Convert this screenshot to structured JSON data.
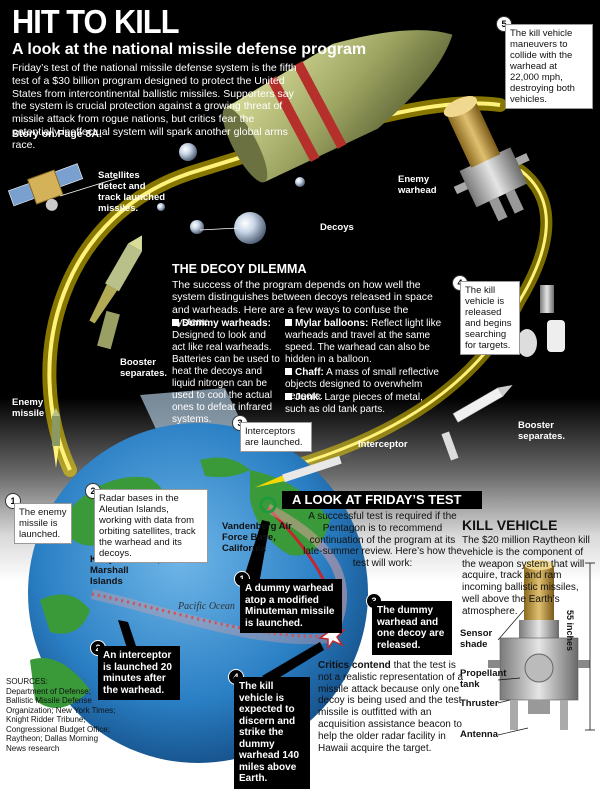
{
  "header": {
    "title": "HIT TO KILL",
    "subtitle": "A look at the national missile defense program",
    "intro": "Friday’s test of the national missile defense system is the fifth test of a $30 billion program designed to protect the United States from intercontinental ballistic missiles. Supporters say the system is crucial protection against a growing threat of missile attack from rogue nations, but critics fear the potentially ineffectual system will spark another global arms race.",
    "story_ref": "Story on Page 8A."
  },
  "labels": {
    "satellites": "Satellites detect and track launched missiles.",
    "enemy_warhead": "Enemy warhead",
    "decoys": "Decoys",
    "booster_separates_left": "Booster separates.",
    "enemy_missile": "Enemy missile",
    "interceptor": "Interceptor",
    "booster_separates_right": "Booster separates.",
    "vandenberg": "Vandenberg Air Force Base, California",
    "kwajalein": "Kwajalein Atoll, Marshall Islands",
    "pacific": "Pacific Ocean"
  },
  "callouts": {
    "step1": {
      "num": "1",
      "text": "The enemy missile is launched."
    },
    "step2": {
      "num": "2",
      "text": "Radar bases in the Aleutian Islands, working with data from orbiting satellites, track the warhead and its decoys."
    },
    "step3": {
      "num": "3",
      "text": "Interceptors are launched."
    },
    "step4": {
      "num": "4",
      "text": "The kill vehicle is released and begins searching for targets."
    },
    "step5": {
      "num": "5",
      "text": "The kill vehicle maneuvers to collide with the warhead at 22,000 mph, destroying both vehicles."
    }
  },
  "dilemma": {
    "heading": "THE DECOY DILEMMA",
    "intro": "The success of the program depends on how well the system distinguishes between decoys released in space and warheads. Here are a few ways to confuse the system:",
    "items": [
      {
        "term": "Dummy warheads:",
        "text": "Designed to look and act like real warheads. Batteries can be used to heat the decoys and liquid nitrogen can be used to cool the actual ones to defeat infrared systems."
      },
      {
        "term": "Mylar balloons:",
        "text": "Reflect light like warheads and travel at the same speed. The warhead can also be hidden in a balloon."
      },
      {
        "term": "Chaff:",
        "text": "A mass of small reflective objects designed to overwhelm sensors."
      },
      {
        "term": "Junk:",
        "text": "Large pieces of metal, such as old tank parts."
      }
    ]
  },
  "friday": {
    "banner": "A LOOK AT FRIDAY’S TEST",
    "text": "A successful test is required if the Pentagon is to recommend continuation of the program at its late-summer review. Here’s how the test will work:",
    "steps": [
      {
        "num": "1",
        "text": "A dummy warhead atop a modified Minuteman missile is launched."
      },
      {
        "num": "2",
        "text": "An interceptor is launched 20 minutes after the warhead."
      },
      {
        "num": "3",
        "text": "The dummy warhead and one decoy are released."
      },
      {
        "num": "4",
        "text": "The kill vehicle is expected to discern and strike the dummy warhead 140 miles above Earth."
      }
    ],
    "critics_lead": "Critics contend",
    "critics_text": " that the test is not a realistic representation of a missile attack because only one decoy is being used and the test missile is outfitted with an acquisition assistance beacon to help the older radar facility in Hawaii acquire the target."
  },
  "kill_vehicle": {
    "title": "KILL VEHICLE",
    "text": "The $20 million Raytheon kill vehicle is the component of the weapon system that will acquire, track and ram incoming ballistic missiles, well above the Earth’s atmosphere.",
    "dimension": "55 inches",
    "parts": [
      "Sensor shade",
      "Propellant tank",
      "Thruster",
      "Antenna"
    ]
  },
  "sources": {
    "head": "SOURCES:",
    "text": "Department of Defense; Ballistic Missile Defense Organization; New York Times; Knight Ridder Tribune; Congressional Budget Office; Raytheon; Dallas Morning News research"
  },
  "colors": {
    "trail": "#f5d800",
    "ocean": "#2a7fc4",
    "land": "#3a9a3a",
    "arc": "#c2262e"
  }
}
